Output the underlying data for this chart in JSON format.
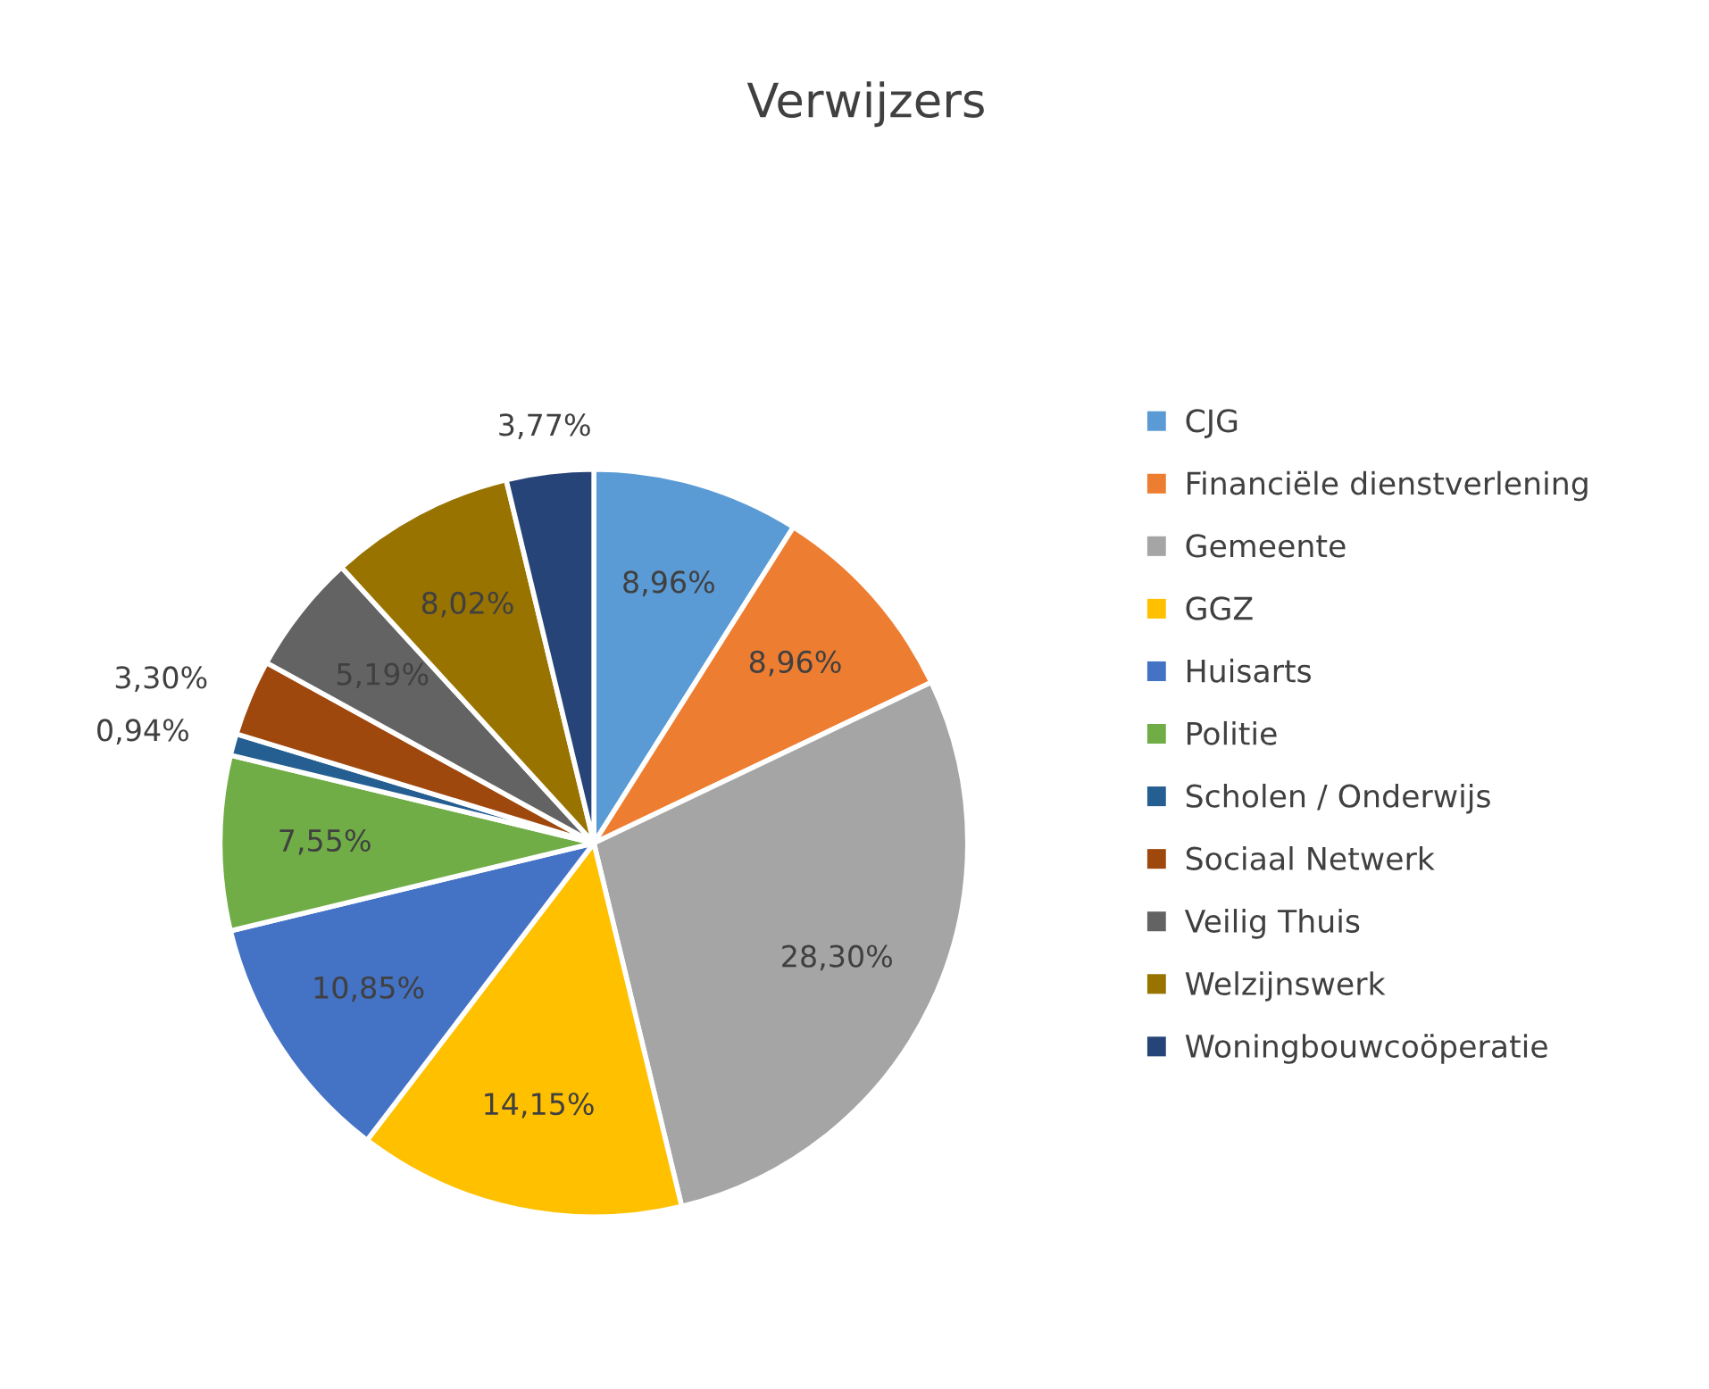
{
  "chart_data": {
    "type": "pie",
    "title": "Verwijzers",
    "categories": [
      "CJG",
      "Financiële dienstverlening",
      "Gemeente",
      "GGZ",
      "Huisarts",
      "Politie",
      "Scholen / Onderwijs",
      "Sociaal Netwerk",
      "Veilig Thuis",
      "Welzijnswerk",
      "Woningbouwcoöperatie"
    ],
    "values": [
      8.96,
      8.96,
      28.3,
      14.15,
      10.85,
      7.55,
      0.94,
      3.3,
      5.19,
      8.02,
      3.77
    ],
    "value_labels": [
      "8,96%",
      "8,96%",
      "28,30%",
      "14,15%",
      "10,85%",
      "7,55%",
      "0,94%",
      "3,30%",
      "5,19%",
      "8,02%",
      "3,77%"
    ],
    "colors": [
      "#5b9bd5",
      "#ed7d31",
      "#a5a5a5",
      "#ffc000",
      "#4472c4",
      "#70ad47",
      "#255e91",
      "#9e480e",
      "#636363",
      "#997300",
      "#264478"
    ],
    "legend": "right"
  }
}
